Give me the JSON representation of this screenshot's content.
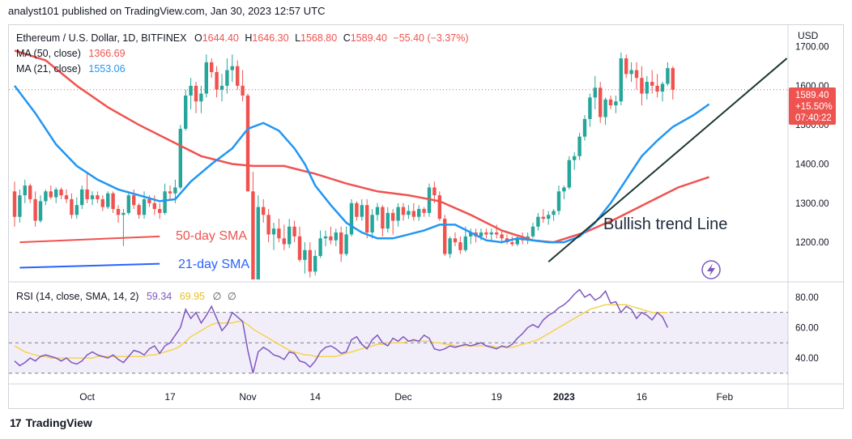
{
  "header": {
    "publisher": "analyst101 published on TradingView.com, Jan 30, 2023 12:57 UTC"
  },
  "footer": {
    "brand": "TradingView"
  },
  "legend": {
    "symbol": "Ethereum / U.S. Dollar, 1D, BITFINEX",
    "o_label": "O",
    "o_value": "1644.40",
    "h_label": "H",
    "h_value": "1646.30",
    "l_label": "L",
    "l_value": "1568.80",
    "c_label": "C",
    "c_value": "1589.40",
    "change": "−55.40 (−3.37%)",
    "ma50_label": "MA (50, close)",
    "ma50_value": "1366.69",
    "ma21_label": "MA (21, close)",
    "ma21_value": "1553.06"
  },
  "rsi_legend": {
    "label": "RSI (14, close, SMA, 14, 2)",
    "rsi_value": "59.34",
    "sma_value": "69.95",
    "na1": "∅",
    "na2": "∅"
  },
  "price_tag": {
    "price": "1589.40",
    "change_pct": "+15.50%",
    "countdown": "07:40:22"
  },
  "annotations": {
    "sma50": "50-day SMA",
    "sma21": "21-day SMA",
    "trend": "Bullish trend Line"
  },
  "colors": {
    "up": "#26a69a",
    "down": "#ef5350",
    "ma50": "#ef5350",
    "ma21": "#2196f3",
    "rsi": "#7e57c2",
    "rsi_sma": "#f5d34f",
    "trend": "#1e3932"
  },
  "chart_data": {
    "type": "candlestick",
    "currency": "USD",
    "y_ticks": [
      "1700.00",
      "1600.00",
      "1500.00",
      "1400.00",
      "1300.00",
      "1200.00"
    ],
    "ylim": [
      1105,
      1755
    ],
    "x_ticks": [
      {
        "label": "Oct",
        "index": 14
      },
      {
        "label": "17",
        "index": 30
      },
      {
        "label": "Nov",
        "index": 45
      },
      {
        "label": "14",
        "index": 58
      },
      {
        "label": "Dec",
        "index": 75
      },
      {
        "label": "19",
        "index": 93
      },
      {
        "label": "2023",
        "index": 106
      },
      {
        "label": "16",
        "index": 121
      },
      {
        "label": "Feb",
        "index": 137
      }
    ],
    "candles": [
      [
        1330,
        1355,
        1240,
        1265
      ],
      [
        1265,
        1335,
        1250,
        1320
      ],
      [
        1320,
        1360,
        1300,
        1345
      ],
      [
        1345,
        1350,
        1300,
        1310
      ],
      [
        1310,
        1330,
        1240,
        1255
      ],
      [
        1255,
        1320,
        1250,
        1305
      ],
      [
        1305,
        1335,
        1295,
        1330
      ],
      [
        1330,
        1345,
        1310,
        1315
      ],
      [
        1315,
        1340,
        1300,
        1335
      ],
      [
        1335,
        1340,
        1310,
        1320
      ],
      [
        1320,
        1335,
        1300,
        1310
      ],
      [
        1310,
        1325,
        1260,
        1270
      ],
      [
        1270,
        1315,
        1260,
        1295
      ],
      [
        1295,
        1345,
        1285,
        1335
      ],
      [
        1335,
        1380,
        1300,
        1310
      ],
      [
        1310,
        1330,
        1295,
        1320
      ],
      [
        1320,
        1330,
        1300,
        1310
      ],
      [
        1310,
        1320,
        1280,
        1290
      ],
      [
        1290,
        1330,
        1285,
        1325
      ],
      [
        1325,
        1330,
        1275,
        1285
      ],
      [
        1285,
        1295,
        1250,
        1270
      ],
      [
        1270,
        1285,
        1190,
        1275
      ],
      [
        1275,
        1330,
        1270,
        1320
      ],
      [
        1320,
        1335,
        1285,
        1295
      ],
      [
        1295,
        1300,
        1260,
        1270
      ],
      [
        1270,
        1330,
        1260,
        1310
      ],
      [
        1310,
        1320,
        1290,
        1300
      ],
      [
        1300,
        1320,
        1270,
        1285
      ],
      [
        1285,
        1300,
        1260,
        1275
      ],
      [
        1275,
        1350,
        1270,
        1330
      ],
      [
        1330,
        1345,
        1310,
        1325
      ],
      [
        1325,
        1360,
        1300,
        1340
      ],
      [
        1340,
        1500,
        1335,
        1490
      ],
      [
        1490,
        1590,
        1485,
        1575
      ],
      [
        1575,
        1620,
        1540,
        1600
      ],
      [
        1600,
        1610,
        1530,
        1560
      ],
      [
        1560,
        1600,
        1530,
        1580
      ],
      [
        1580,
        1680,
        1570,
        1660
      ],
      [
        1660,
        1670,
        1620,
        1635
      ],
      [
        1635,
        1650,
        1570,
        1590
      ],
      [
        1590,
        1630,
        1560,
        1600
      ],
      [
        1600,
        1670,
        1580,
        1640
      ],
      [
        1640,
        1680,
        1610,
        1650
      ],
      [
        1650,
        1665,
        1590,
        1600
      ],
      [
        1600,
        1640,
        1560,
        1575
      ],
      [
        1575,
        1580,
        1330,
        1330
      ],
      [
        1330,
        1380,
        1100,
        1105
      ],
      [
        1105,
        1320,
        1100,
        1290
      ],
      [
        1290,
        1310,
        1250,
        1270
      ],
      [
        1270,
        1285,
        1200,
        1220
      ],
      [
        1220,
        1250,
        1180,
        1235
      ],
      [
        1235,
        1260,
        1200,
        1210
      ],
      [
        1210,
        1245,
        1180,
        1195
      ],
      [
        1195,
        1260,
        1185,
        1240
      ],
      [
        1240,
        1255,
        1200,
        1215
      ],
      [
        1215,
        1240,
        1150,
        1155
      ],
      [
        1155,
        1200,
        1120,
        1180
      ],
      [
        1180,
        1200,
        1110,
        1125
      ],
      [
        1125,
        1180,
        1115,
        1165
      ],
      [
        1165,
        1230,
        1160,
        1210
      ],
      [
        1210,
        1230,
        1190,
        1215
      ],
      [
        1215,
        1240,
        1195,
        1205
      ],
      [
        1205,
        1235,
        1190,
        1225
      ],
      [
        1225,
        1240,
        1150,
        1170
      ],
      [
        1170,
        1240,
        1165,
        1220
      ],
      [
        1220,
        1310,
        1215,
        1300
      ],
      [
        1300,
        1305,
        1255,
        1265
      ],
      [
        1265,
        1310,
        1255,
        1295
      ],
      [
        1295,
        1310,
        1210,
        1225
      ],
      [
        1225,
        1285,
        1210,
        1270
      ],
      [
        1270,
        1300,
        1255,
        1290
      ],
      [
        1290,
        1295,
        1215,
        1235
      ],
      [
        1235,
        1290,
        1225,
        1275
      ],
      [
        1275,
        1285,
        1220,
        1255
      ],
      [
        1255,
        1300,
        1240,
        1290
      ],
      [
        1290,
        1300,
        1255,
        1270
      ],
      [
        1270,
        1295,
        1260,
        1280
      ],
      [
        1280,
        1300,
        1255,
        1265
      ],
      [
        1265,
        1295,
        1255,
        1285
      ],
      [
        1285,
        1290,
        1265,
        1275
      ],
      [
        1275,
        1350,
        1265,
        1340
      ],
      [
        1340,
        1355,
        1300,
        1320
      ],
      [
        1320,
        1330,
        1255,
        1260
      ],
      [
        1260,
        1270,
        1165,
        1170
      ],
      [
        1170,
        1215,
        1160,
        1210
      ],
      [
        1210,
        1225,
        1190,
        1200
      ],
      [
        1200,
        1215,
        1170,
        1180
      ],
      [
        1180,
        1240,
        1175,
        1215
      ],
      [
        1215,
        1235,
        1195,
        1225
      ],
      [
        1225,
        1235,
        1200,
        1215
      ],
      [
        1215,
        1235,
        1205,
        1225
      ],
      [
        1225,
        1235,
        1210,
        1220
      ],
      [
        1220,
        1235,
        1205,
        1225
      ],
      [
        1225,
        1245,
        1210,
        1220
      ],
      [
        1220,
        1230,
        1200,
        1210
      ],
      [
        1210,
        1220,
        1195,
        1200
      ],
      [
        1200,
        1215,
        1190,
        1195
      ],
      [
        1195,
        1220,
        1190,
        1210
      ],
      [
        1210,
        1225,
        1195,
        1205
      ],
      [
        1205,
        1225,
        1195,
        1215
      ],
      [
        1215,
        1250,
        1210,
        1240
      ],
      [
        1240,
        1275,
        1230,
        1265
      ],
      [
        1265,
        1285,
        1250,
        1260
      ],
      [
        1260,
        1280,
        1245,
        1270
      ],
      [
        1270,
        1285,
        1255,
        1280
      ],
      [
        1280,
        1345,
        1270,
        1330
      ],
      [
        1330,
        1345,
        1310,
        1340
      ],
      [
        1340,
        1420,
        1335,
        1410
      ],
      [
        1410,
        1430,
        1385,
        1420
      ],
      [
        1420,
        1480,
        1410,
        1470
      ],
      [
        1470,
        1525,
        1460,
        1515
      ],
      [
        1515,
        1580,
        1495,
        1570
      ],
      [
        1570,
        1625,
        1540,
        1595
      ],
      [
        1595,
        1610,
        1505,
        1520
      ],
      [
        1520,
        1570,
        1500,
        1565
      ],
      [
        1565,
        1575,
        1540,
        1550
      ],
      [
        1550,
        1575,
        1530,
        1560
      ],
      [
        1560,
        1685,
        1550,
        1670
      ],
      [
        1670,
        1680,
        1620,
        1630
      ],
      [
        1630,
        1660,
        1610,
        1640
      ],
      [
        1640,
        1660,
        1590,
        1620
      ],
      [
        1620,
        1650,
        1550,
        1580
      ],
      [
        1580,
        1625,
        1565,
        1610
      ],
      [
        1610,
        1640,
        1580,
        1600
      ],
      [
        1600,
        1630,
        1570,
        1585
      ],
      [
        1585,
        1610,
        1560,
        1605
      ],
      [
        1605,
        1660,
        1600,
        1645
      ],
      [
        1645,
        1650,
        1565,
        1590
      ]
    ],
    "ma50_points": [
      [
        0,
        1690
      ],
      [
        6,
        1665
      ],
      [
        12,
        1600
      ],
      [
        18,
        1545
      ],
      [
        24,
        1500
      ],
      [
        30,
        1460
      ],
      [
        36,
        1420
      ],
      [
        42,
        1400
      ],
      [
        46,
        1395
      ],
      [
        52,
        1395
      ],
      [
        58,
        1375
      ],
      [
        64,
        1350
      ],
      [
        70,
        1330
      ],
      [
        76,
        1320
      ],
      [
        82,
        1305
      ],
      [
        88,
        1270
      ],
      [
        94,
        1230
      ],
      [
        100,
        1205
      ],
      [
        104,
        1200
      ],
      [
        110,
        1225
      ],
      [
        116,
        1260
      ],
      [
        122,
        1300
      ],
      [
        128,
        1340
      ],
      [
        134,
        1366.69
      ]
    ],
    "ma21_points": [
      [
        0,
        1600
      ],
      [
        4,
        1530
      ],
      [
        8,
        1450
      ],
      [
        12,
        1395
      ],
      [
        16,
        1360
      ],
      [
        20,
        1335
      ],
      [
        24,
        1320
      ],
      [
        28,
        1305
      ],
      [
        31,
        1310
      ],
      [
        34,
        1355
      ],
      [
        38,
        1400
      ],
      [
        42,
        1440
      ],
      [
        45,
        1490
      ],
      [
        48,
        1505
      ],
      [
        51,
        1485
      ],
      [
        54,
        1440
      ],
      [
        56,
        1400
      ],
      [
        58,
        1345
      ],
      [
        61,
        1295
      ],
      [
        64,
        1250
      ],
      [
        67,
        1225
      ],
      [
        70,
        1210
      ],
      [
        73,
        1210
      ],
      [
        76,
        1220
      ],
      [
        79,
        1230
      ],
      [
        82,
        1245
      ],
      [
        85,
        1245
      ],
      [
        88,
        1225
      ],
      [
        91,
        1205
      ],
      [
        94,
        1200
      ],
      [
        97,
        1210
      ],
      [
        100,
        1205
      ],
      [
        103,
        1200
      ],
      [
        106,
        1200
      ],
      [
        109,
        1215
      ],
      [
        112,
        1250
      ],
      [
        115,
        1300
      ],
      [
        118,
        1360
      ],
      [
        121,
        1420
      ],
      [
        124,
        1460
      ],
      [
        127,
        1495
      ],
      [
        131,
        1525
      ],
      [
        134,
        1553.06
      ]
    ],
    "trend_line": [
      [
        103,
        1150
      ],
      [
        149,
        1670
      ]
    ],
    "sma50_annotation_line": [
      [
        1,
        1200
      ],
      [
        28,
        1215
      ]
    ],
    "sma21_annotation_line": [
      [
        1,
        1135
      ],
      [
        28,
        1145
      ]
    ],
    "rsi": {
      "ticks": [
        "80.00",
        "60.00",
        "40.00"
      ],
      "ylim": [
        24,
        89
      ],
      "bands": [
        30,
        50,
        70
      ],
      "values": [
        38,
        35,
        37,
        40,
        38,
        41,
        42,
        41,
        40,
        38,
        40,
        37,
        36,
        38,
        42,
        44,
        42,
        41,
        40,
        42,
        39,
        37,
        41,
        45,
        44,
        42,
        46,
        48,
        43,
        48,
        50,
        55,
        60,
        72,
        66,
        70,
        63,
        68,
        74,
        66,
        58,
        62,
        70,
        67,
        64,
        45,
        30,
        44,
        47,
        45,
        42,
        41,
        39,
        44,
        43,
        38,
        37,
        34,
        38,
        44,
        47,
        48,
        46,
        43,
        44,
        52,
        54,
        49,
        46,
        52,
        55,
        50,
        48,
        53,
        51,
        54,
        51,
        52,
        51,
        55,
        53,
        46,
        45,
        46,
        48,
        47,
        48,
        49,
        48,
        49,
        50,
        48,
        47,
        46,
        48,
        47,
        49,
        53,
        56,
        60,
        62,
        60,
        65,
        68,
        70,
        73,
        75,
        78,
        82,
        85,
        80,
        82,
        78,
        80,
        84,
        76,
        77,
        70,
        74,
        72,
        66,
        70,
        68,
        65,
        70,
        67,
        60
      ],
      "sma_values": [
        48,
        46,
        44,
        43,
        42,
        41,
        41,
        40,
        40,
        40,
        40,
        40,
        40,
        40,
        40,
        40,
        41,
        41,
        41,
        41,
        41,
        41,
        41,
        41,
        41,
        41,
        42,
        42,
        43,
        44,
        45,
        46,
        48,
        51,
        54,
        56,
        58,
        60,
        62,
        63,
        63,
        63,
        63,
        64,
        64,
        62,
        59,
        57,
        55,
        53,
        51,
        49,
        47,
        45,
        44,
        43,
        42,
        42,
        41,
        41,
        41,
        41,
        41,
        42,
        43,
        44,
        45,
        46,
        47,
        48,
        49,
        49,
        50,
        50,
        50,
        50,
        51,
        51,
        51,
        51,
        51,
        50,
        50,
        49,
        49,
        48,
        48,
        48,
        48,
        48,
        48,
        48,
        48,
        47,
        47,
        47,
        47,
        48,
        49,
        50,
        51,
        52,
        54,
        56,
        58,
        60,
        62,
        64,
        66,
        68,
        70,
        72,
        73,
        74,
        75,
        75,
        75,
        75,
        75,
        74,
        73,
        72,
        71,
        70,
        70,
        70,
        69.95
      ]
    }
  }
}
